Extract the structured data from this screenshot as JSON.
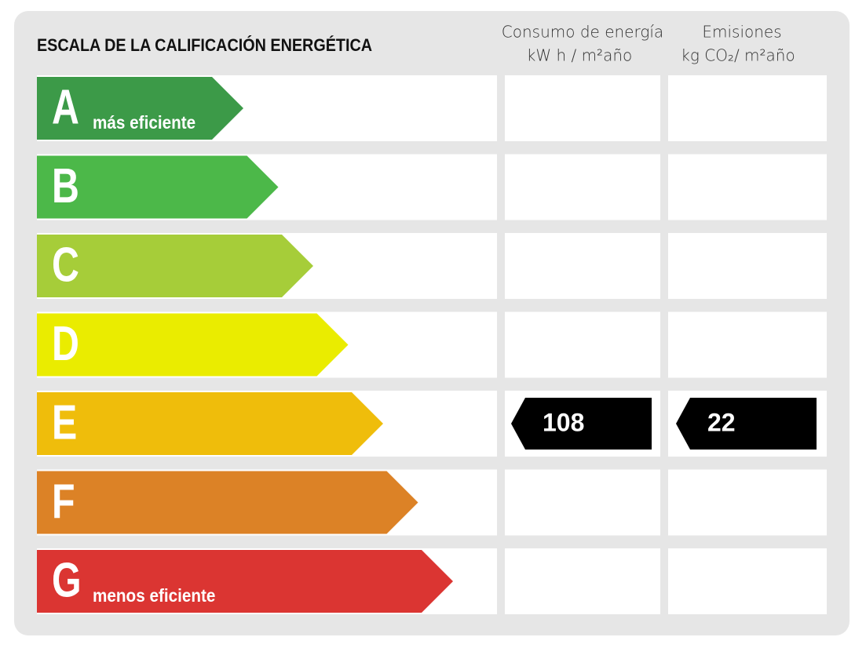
{
  "header": {
    "title": "ESCALA DE LA CALIFICACIÓN ENERGÉTICA",
    "columns": [
      {
        "title": "Consumo de energía",
        "unit": "kW h / m²año"
      },
      {
        "title": "Emisiones",
        "unit": "kg CO₂/ m²año"
      }
    ]
  },
  "rows": [
    {
      "letter": "A",
      "note": "más eficiente",
      "color": "#3c9a48"
    },
    {
      "letter": "B",
      "color": "#4cb849"
    },
    {
      "letter": "C",
      "color": "#a6cd39"
    },
    {
      "letter": "D",
      "color": "#eaec00"
    },
    {
      "letter": "E",
      "color": "#efbd0b",
      "consumption": 108,
      "emissions": 22
    },
    {
      "letter": "F",
      "color": "#dc8226"
    },
    {
      "letter": "G",
      "note": "menos eficiente",
      "color": "#db3532"
    }
  ]
}
